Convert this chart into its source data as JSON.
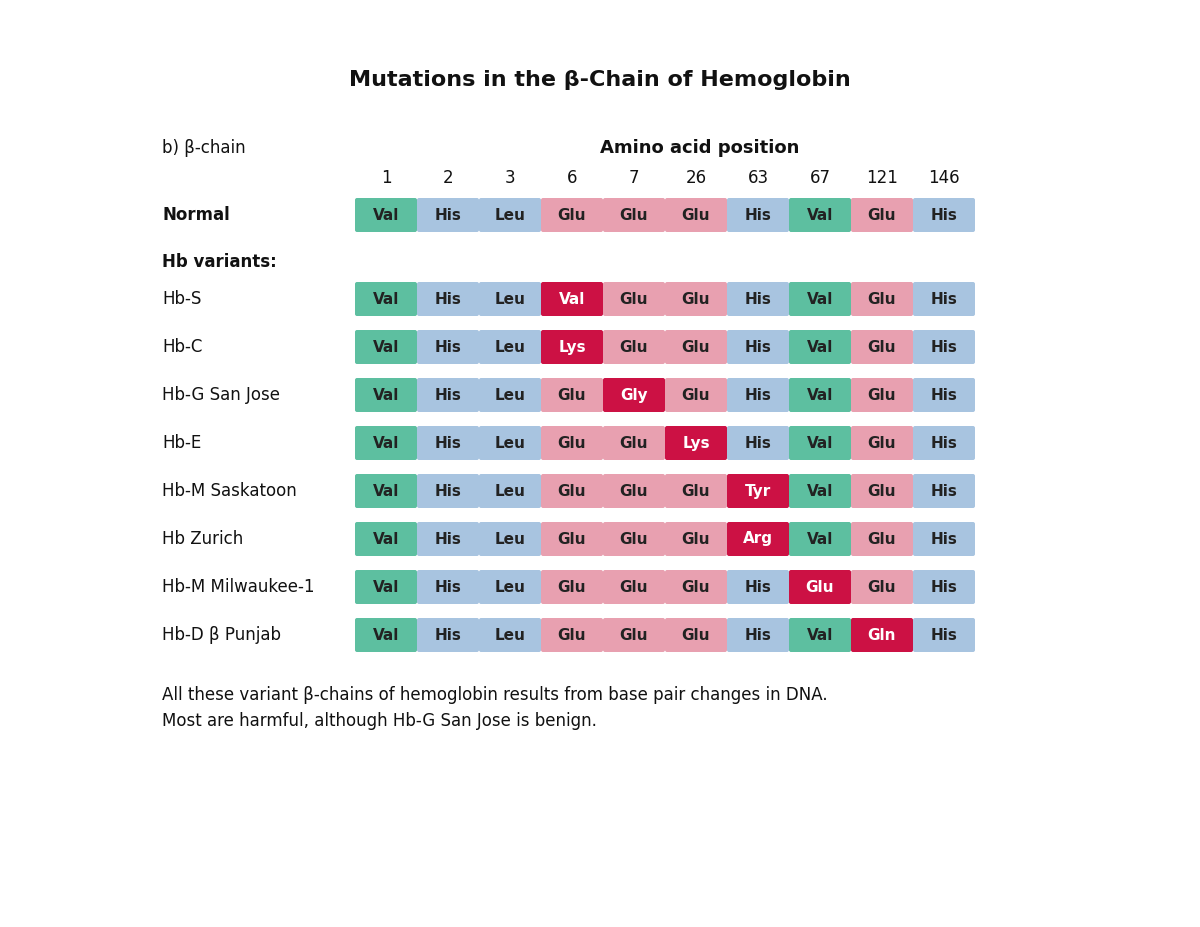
{
  "title": "Mutations in the β-Chain of Hemoglobin",
  "subtitle_label": "b) β-chain",
  "amino_acid_header": "Amino acid position",
  "positions": [
    "1",
    "2",
    "3",
    "6",
    "7",
    "26",
    "63",
    "67",
    "121",
    "146"
  ],
  "rows": [
    {
      "label": "Normal",
      "bold": true,
      "cells": [
        {
          "text": "Val",
          "color": "#5dbfa0",
          "text_color": "#222222"
        },
        {
          "text": "His",
          "color": "#a8c4e0",
          "text_color": "#222222"
        },
        {
          "text": "Leu",
          "color": "#a8c4e0",
          "text_color": "#222222"
        },
        {
          "text": "Glu",
          "color": "#e8a0b0",
          "text_color": "#222222"
        },
        {
          "text": "Glu",
          "color": "#e8a0b0",
          "text_color": "#222222"
        },
        {
          "text": "Glu",
          "color": "#e8a0b0",
          "text_color": "#222222"
        },
        {
          "text": "His",
          "color": "#a8c4e0",
          "text_color": "#222222"
        },
        {
          "text": "Val",
          "color": "#5dbfa0",
          "text_color": "#222222"
        },
        {
          "text": "Glu",
          "color": "#e8a0b0",
          "text_color": "#222222"
        },
        {
          "text": "His",
          "color": "#a8c4e0",
          "text_color": "#222222"
        }
      ]
    },
    {
      "label": "Hb-S",
      "bold": false,
      "cells": [
        {
          "text": "Val",
          "color": "#5dbfa0",
          "text_color": "#222222"
        },
        {
          "text": "His",
          "color": "#a8c4e0",
          "text_color": "#222222"
        },
        {
          "text": "Leu",
          "color": "#a8c4e0",
          "text_color": "#222222"
        },
        {
          "text": "Val",
          "color": "#cc1144",
          "text_color": "#ffffff"
        },
        {
          "text": "Glu",
          "color": "#e8a0b0",
          "text_color": "#222222"
        },
        {
          "text": "Glu",
          "color": "#e8a0b0",
          "text_color": "#222222"
        },
        {
          "text": "His",
          "color": "#a8c4e0",
          "text_color": "#222222"
        },
        {
          "text": "Val",
          "color": "#5dbfa0",
          "text_color": "#222222"
        },
        {
          "text": "Glu",
          "color": "#e8a0b0",
          "text_color": "#222222"
        },
        {
          "text": "His",
          "color": "#a8c4e0",
          "text_color": "#222222"
        }
      ]
    },
    {
      "label": "Hb-C",
      "bold": false,
      "cells": [
        {
          "text": "Val",
          "color": "#5dbfa0",
          "text_color": "#222222"
        },
        {
          "text": "His",
          "color": "#a8c4e0",
          "text_color": "#222222"
        },
        {
          "text": "Leu",
          "color": "#a8c4e0",
          "text_color": "#222222"
        },
        {
          "text": "Lys",
          "color": "#cc1144",
          "text_color": "#ffffff"
        },
        {
          "text": "Glu",
          "color": "#e8a0b0",
          "text_color": "#222222"
        },
        {
          "text": "Glu",
          "color": "#e8a0b0",
          "text_color": "#222222"
        },
        {
          "text": "His",
          "color": "#a8c4e0",
          "text_color": "#222222"
        },
        {
          "text": "Val",
          "color": "#5dbfa0",
          "text_color": "#222222"
        },
        {
          "text": "Glu",
          "color": "#e8a0b0",
          "text_color": "#222222"
        },
        {
          "text": "His",
          "color": "#a8c4e0",
          "text_color": "#222222"
        }
      ]
    },
    {
      "label": "Hb-G San Jose",
      "bold": false,
      "cells": [
        {
          "text": "Val",
          "color": "#5dbfa0",
          "text_color": "#222222"
        },
        {
          "text": "His",
          "color": "#a8c4e0",
          "text_color": "#222222"
        },
        {
          "text": "Leu",
          "color": "#a8c4e0",
          "text_color": "#222222"
        },
        {
          "text": "Glu",
          "color": "#e8a0b0",
          "text_color": "#222222"
        },
        {
          "text": "Gly",
          "color": "#cc1144",
          "text_color": "#ffffff"
        },
        {
          "text": "Glu",
          "color": "#e8a0b0",
          "text_color": "#222222"
        },
        {
          "text": "His",
          "color": "#a8c4e0",
          "text_color": "#222222"
        },
        {
          "text": "Val",
          "color": "#5dbfa0",
          "text_color": "#222222"
        },
        {
          "text": "Glu",
          "color": "#e8a0b0",
          "text_color": "#222222"
        },
        {
          "text": "His",
          "color": "#a8c4e0",
          "text_color": "#222222"
        }
      ]
    },
    {
      "label": "Hb-E",
      "bold": false,
      "cells": [
        {
          "text": "Val",
          "color": "#5dbfa0",
          "text_color": "#222222"
        },
        {
          "text": "His",
          "color": "#a8c4e0",
          "text_color": "#222222"
        },
        {
          "text": "Leu",
          "color": "#a8c4e0",
          "text_color": "#222222"
        },
        {
          "text": "Glu",
          "color": "#e8a0b0",
          "text_color": "#222222"
        },
        {
          "text": "Glu",
          "color": "#e8a0b0",
          "text_color": "#222222"
        },
        {
          "text": "Lys",
          "color": "#cc1144",
          "text_color": "#ffffff"
        },
        {
          "text": "His",
          "color": "#a8c4e0",
          "text_color": "#222222"
        },
        {
          "text": "Val",
          "color": "#5dbfa0",
          "text_color": "#222222"
        },
        {
          "text": "Glu",
          "color": "#e8a0b0",
          "text_color": "#222222"
        },
        {
          "text": "His",
          "color": "#a8c4e0",
          "text_color": "#222222"
        }
      ]
    },
    {
      "label": "Hb-M Saskatoon",
      "bold": false,
      "cells": [
        {
          "text": "Val",
          "color": "#5dbfa0",
          "text_color": "#222222"
        },
        {
          "text": "His",
          "color": "#a8c4e0",
          "text_color": "#222222"
        },
        {
          "text": "Leu",
          "color": "#a8c4e0",
          "text_color": "#222222"
        },
        {
          "text": "Glu",
          "color": "#e8a0b0",
          "text_color": "#222222"
        },
        {
          "text": "Glu",
          "color": "#e8a0b0",
          "text_color": "#222222"
        },
        {
          "text": "Glu",
          "color": "#e8a0b0",
          "text_color": "#222222"
        },
        {
          "text": "Tyr",
          "color": "#cc1144",
          "text_color": "#ffffff"
        },
        {
          "text": "Val",
          "color": "#5dbfa0",
          "text_color": "#222222"
        },
        {
          "text": "Glu",
          "color": "#e8a0b0",
          "text_color": "#222222"
        },
        {
          "text": "His",
          "color": "#a8c4e0",
          "text_color": "#222222"
        }
      ]
    },
    {
      "label": "Hb Zurich",
      "bold": false,
      "cells": [
        {
          "text": "Val",
          "color": "#5dbfa0",
          "text_color": "#222222"
        },
        {
          "text": "His",
          "color": "#a8c4e0",
          "text_color": "#222222"
        },
        {
          "text": "Leu",
          "color": "#a8c4e0",
          "text_color": "#222222"
        },
        {
          "text": "Glu",
          "color": "#e8a0b0",
          "text_color": "#222222"
        },
        {
          "text": "Glu",
          "color": "#e8a0b0",
          "text_color": "#222222"
        },
        {
          "text": "Glu",
          "color": "#e8a0b0",
          "text_color": "#222222"
        },
        {
          "text": "Arg",
          "color": "#cc1144",
          "text_color": "#ffffff"
        },
        {
          "text": "Val",
          "color": "#5dbfa0",
          "text_color": "#222222"
        },
        {
          "text": "Glu",
          "color": "#e8a0b0",
          "text_color": "#222222"
        },
        {
          "text": "His",
          "color": "#a8c4e0",
          "text_color": "#222222"
        }
      ]
    },
    {
      "label": "Hb-M Milwaukee-1",
      "bold": false,
      "cells": [
        {
          "text": "Val",
          "color": "#5dbfa0",
          "text_color": "#222222"
        },
        {
          "text": "His",
          "color": "#a8c4e0",
          "text_color": "#222222"
        },
        {
          "text": "Leu",
          "color": "#a8c4e0",
          "text_color": "#222222"
        },
        {
          "text": "Glu",
          "color": "#e8a0b0",
          "text_color": "#222222"
        },
        {
          "text": "Glu",
          "color": "#e8a0b0",
          "text_color": "#222222"
        },
        {
          "text": "Glu",
          "color": "#e8a0b0",
          "text_color": "#222222"
        },
        {
          "text": "His",
          "color": "#a8c4e0",
          "text_color": "#222222"
        },
        {
          "text": "Glu",
          "color": "#cc1144",
          "text_color": "#ffffff"
        },
        {
          "text": "Glu",
          "color": "#e8a0b0",
          "text_color": "#222222"
        },
        {
          "text": "His",
          "color": "#a8c4e0",
          "text_color": "#222222"
        }
      ]
    },
    {
      "label": "Hb-D β Punjab",
      "bold": false,
      "cells": [
        {
          "text": "Val",
          "color": "#5dbfa0",
          "text_color": "#222222"
        },
        {
          "text": "His",
          "color": "#a8c4e0",
          "text_color": "#222222"
        },
        {
          "text": "Leu",
          "color": "#a8c4e0",
          "text_color": "#222222"
        },
        {
          "text": "Glu",
          "color": "#e8a0b0",
          "text_color": "#222222"
        },
        {
          "text": "Glu",
          "color": "#e8a0b0",
          "text_color": "#222222"
        },
        {
          "text": "Glu",
          "color": "#e8a0b0",
          "text_color": "#222222"
        },
        {
          "text": "His",
          "color": "#a8c4e0",
          "text_color": "#222222"
        },
        {
          "text": "Val",
          "color": "#5dbfa0",
          "text_color": "#222222"
        },
        {
          "text": "Gln",
          "color": "#cc1144",
          "text_color": "#ffffff"
        },
        {
          "text": "His",
          "color": "#a8c4e0",
          "text_color": "#222222"
        }
      ]
    }
  ],
  "footer_line1": "All these variant β-chains of hemoglobin results from base pair changes in DNA.",
  "footer_line2": "Most are harmful, although Hb-G San Jose is benign.",
  "bg_color": "#ffffff"
}
